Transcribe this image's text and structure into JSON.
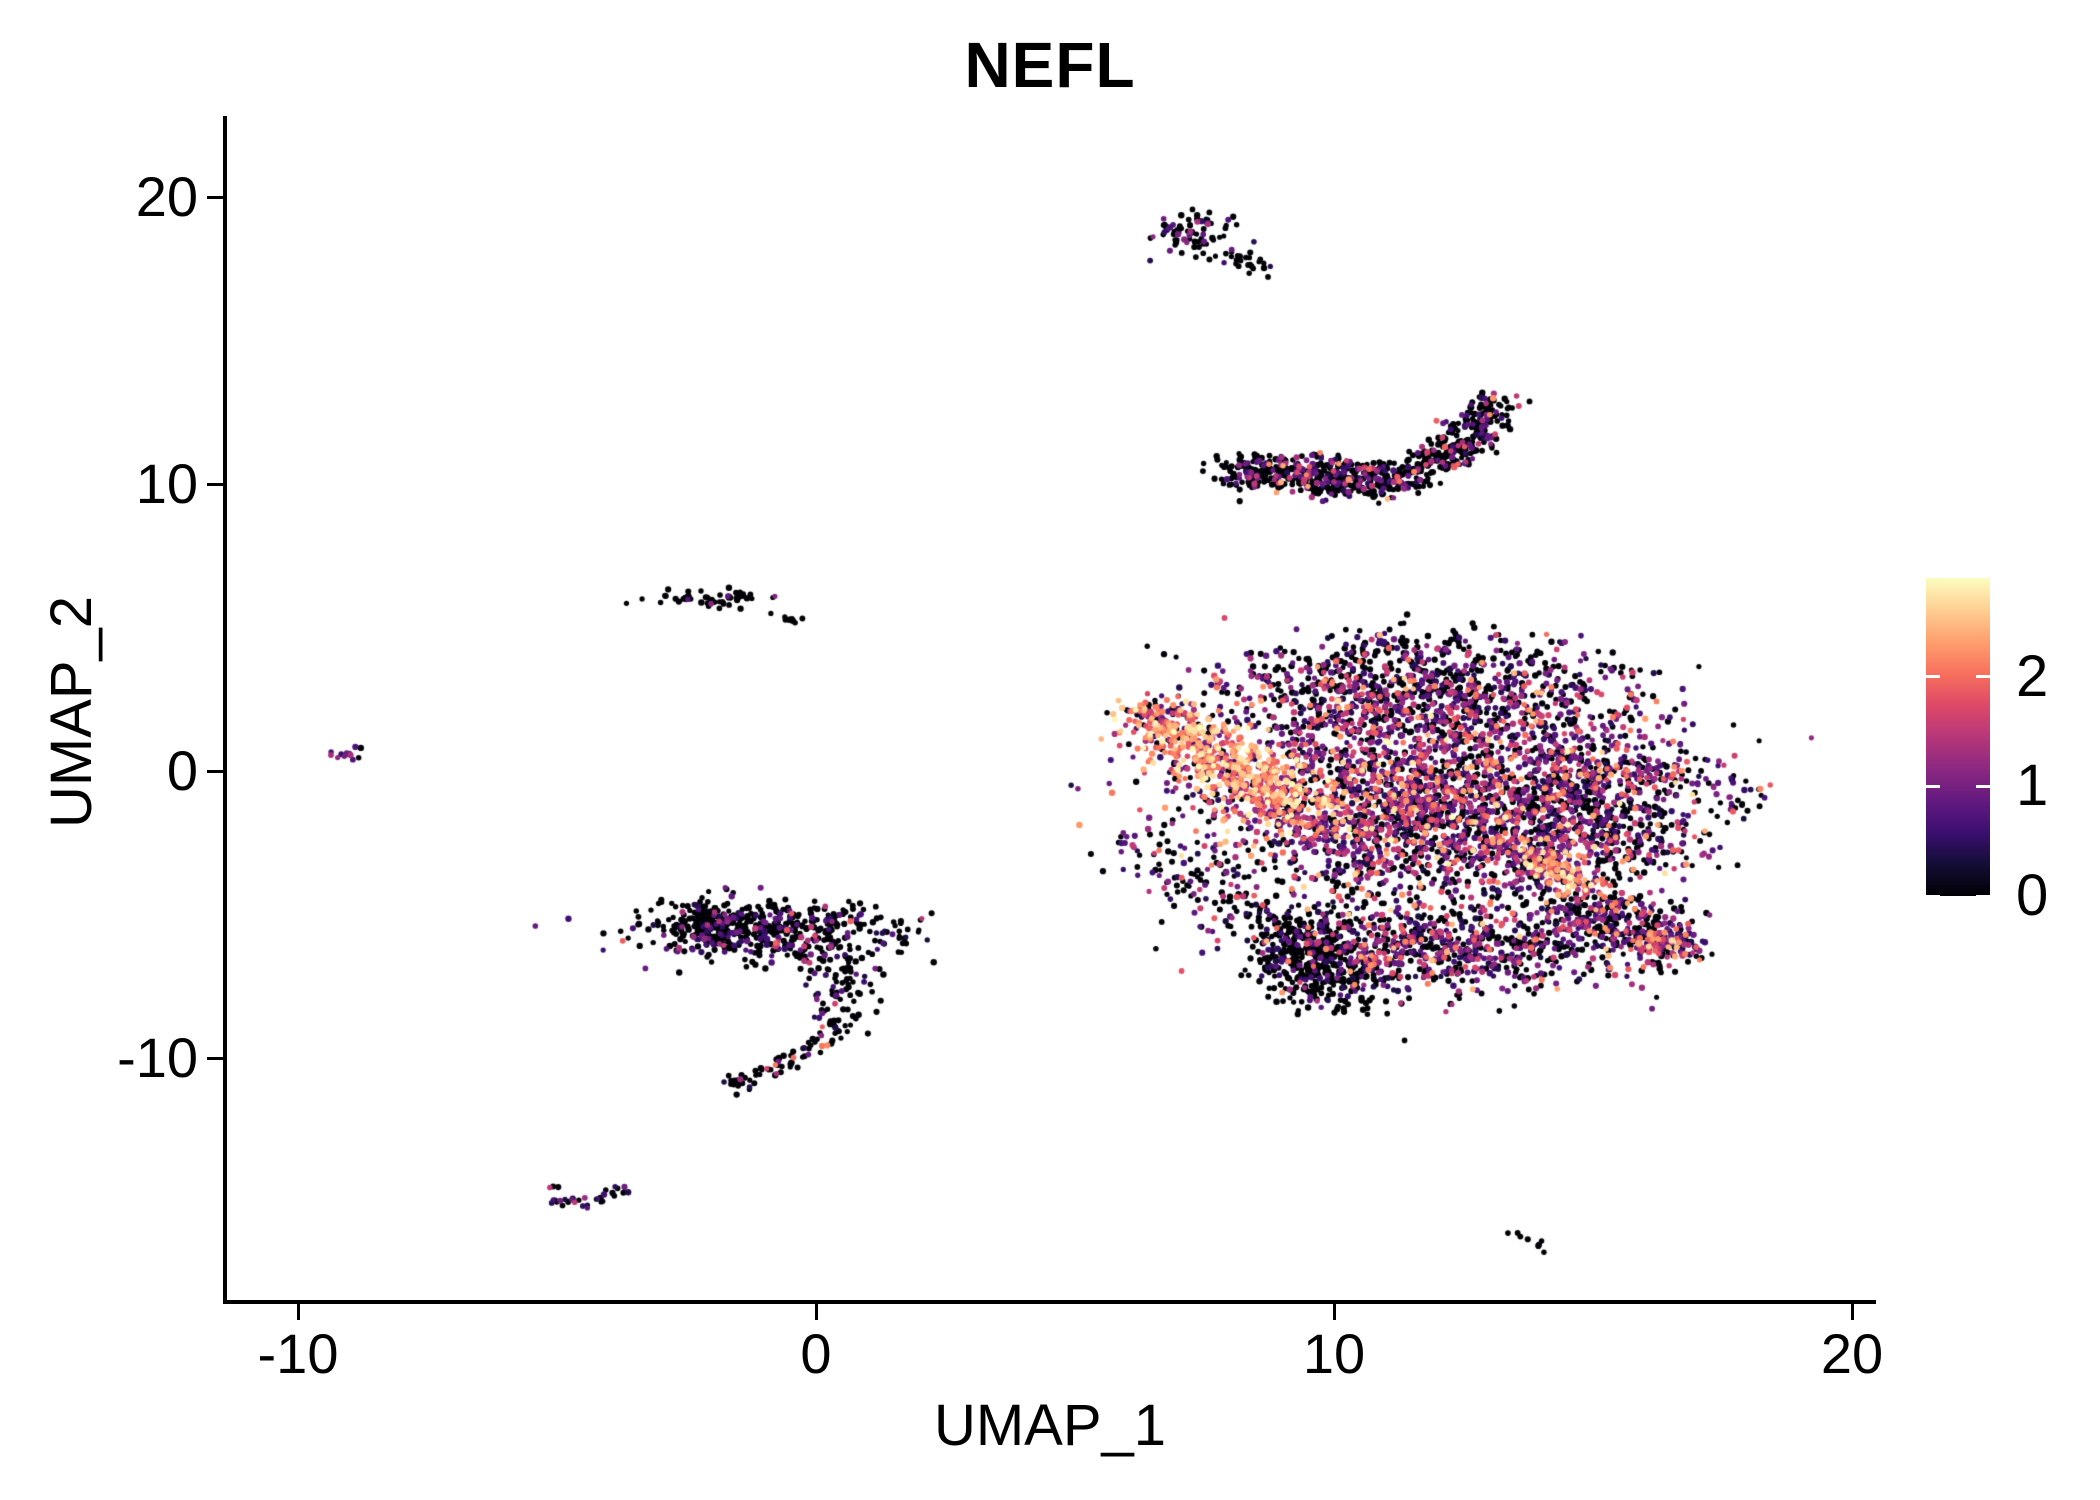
{
  "chart_data": {
    "type": "scatter",
    "title": "NEFL",
    "xlabel": "UMAP_1",
    "ylabel": "UMAP_2",
    "x_ticks": [
      -10,
      0,
      10,
      20
    ],
    "x_tick_labels": [
      "-10",
      "0",
      "10",
      "20"
    ],
    "y_ticks": [
      -10,
      0,
      10,
      20
    ],
    "y_tick_labels": [
      "-10",
      "0",
      "10",
      "20"
    ],
    "x_range": [
      -11.4,
      20.5
    ],
    "y_range": [
      -18.6,
      22.8
    ],
    "grid": false,
    "legend": {
      "position": "right",
      "min": 0,
      "max": 2.9,
      "ticks": [
        0,
        1,
        2
      ],
      "tick_labels": [
        "0",
        "1",
        "2"
      ]
    },
    "colormap": {
      "name": "magma",
      "stops": [
        "#000004",
        "#140e36",
        "#3b0f70",
        "#641a80",
        "#8c2981",
        "#b73779",
        "#de4968",
        "#f7705c",
        "#fe9f6d",
        "#fecf92",
        "#fcfdbf"
      ]
    },
    "clusters": [
      {
        "name": "top-comma-head",
        "shape": "blob",
        "center": [
          7.35,
          18.75
        ],
        "sd": [
          0.45,
          0.35
        ],
        "n": 75,
        "levels": [
          [
            0.8,
            0,
            0.02
          ],
          [
            0.13,
            0.4,
            0.9
          ],
          [
            0.07,
            0.9,
            1.5
          ]
        ]
      },
      {
        "name": "top-comma-tail",
        "shape": "path",
        "path": [
          [
            7.95,
            18.05
          ],
          [
            8.75,
            17.35
          ]
        ],
        "jitter": [
          0.12,
          0.12
        ],
        "n": 26,
        "levels": [
          [
            0.88,
            0,
            0.02
          ],
          [
            0.08,
            0.4,
            0.9
          ],
          [
            0.04,
            0.9,
            1.4
          ]
        ]
      },
      {
        "name": "crescent-band",
        "shape": "path",
        "path": [
          [
            7.95,
            10.5
          ],
          [
            9.2,
            10.4
          ],
          [
            10.7,
            10.1
          ],
          [
            11.7,
            10.35
          ]
        ],
        "jitter": [
          0.25,
          0.33
        ],
        "n": 540,
        "levels": [
          [
            0.7,
            0,
            0.03
          ],
          [
            0.17,
            0.35,
            1.0
          ],
          [
            0.09,
            1.0,
            1.7
          ],
          [
            0.04,
            1.7,
            2.5
          ]
        ]
      },
      {
        "name": "crescent-arm",
        "shape": "path",
        "path": [
          [
            11.8,
            10.6
          ],
          [
            12.45,
            11.3
          ],
          [
            13.0,
            12.5
          ],
          [
            13.15,
            12.95
          ]
        ],
        "jitter": [
          0.3,
          0.25
        ],
        "n": 270,
        "levels": [
          [
            0.74,
            0,
            0.03
          ],
          [
            0.15,
            0.35,
            1.0
          ],
          [
            0.08,
            1.0,
            1.7
          ],
          [
            0.03,
            1.7,
            2.3
          ]
        ]
      },
      {
        "name": "bright-arm",
        "shape": "path",
        "path": [
          [
            6.55,
            1.85
          ],
          [
            7.3,
            1.0
          ],
          [
            8.05,
            0.15
          ],
          [
            8.75,
            -0.7
          ],
          [
            9.35,
            -1.5
          ]
        ],
        "jitter": [
          0.55,
          0.5
        ],
        "n": 640,
        "levels": [
          [
            0.05,
            0,
            0.05
          ],
          [
            0.1,
            0.5,
            1.2
          ],
          [
            0.22,
            1.2,
            1.9
          ],
          [
            0.38,
            1.9,
            2.5
          ],
          [
            0.25,
            2.5,
            2.9
          ]
        ]
      },
      {
        "name": "arm-tip",
        "shape": "blob",
        "center": [
          6.5,
          2.1
        ],
        "sd": [
          0.3,
          0.25
        ],
        "n": 45,
        "levels": [
          [
            0.45,
            0,
            0.05
          ],
          [
            0.3,
            0.4,
            1.1
          ],
          [
            0.15,
            1.1,
            1.8
          ],
          [
            0.1,
            1.8,
            2.4
          ]
        ]
      },
      {
        "name": "top-lobe",
        "shape": "blob",
        "center": [
          11.6,
          2.55
        ],
        "sd": [
          1.85,
          0.95
        ],
        "n": 980,
        "levels": [
          [
            0.44,
            0,
            0.05
          ],
          [
            0.3,
            0.3,
            1.0
          ],
          [
            0.18,
            1.0,
            1.7
          ],
          [
            0.07,
            1.7,
            2.4
          ],
          [
            0.01,
            2.4,
            2.8
          ]
        ]
      },
      {
        "name": "top-fringe",
        "shape": "path",
        "path": [
          [
            8.9,
            3.2
          ],
          [
            10.4,
            4.2
          ],
          [
            12.2,
            4.5
          ],
          [
            13.9,
            3.6
          ]
        ],
        "jitter": [
          0.5,
          0.4
        ],
        "n": 120,
        "levels": [
          [
            0.68,
            0,
            0.03
          ],
          [
            0.24,
            0.3,
            1.0
          ],
          [
            0.08,
            1.0,
            1.6
          ]
        ]
      },
      {
        "name": "center-mass",
        "shape": "blob",
        "center": [
          11.7,
          -1.4
        ],
        "sd": [
          2.05,
          1.65
        ],
        "n": 2200,
        "levels": [
          [
            0.33,
            0,
            0.05
          ],
          [
            0.29,
            0.3,
            1.0
          ],
          [
            0.23,
            1.0,
            1.7
          ],
          [
            0.12,
            1.7,
            2.4
          ],
          [
            0.03,
            2.4,
            2.9
          ]
        ]
      },
      {
        "name": "right-bulge",
        "shape": "blob",
        "center": [
          15.3,
          -1.0
        ],
        "sd": [
          1.15,
          1.55
        ],
        "n": 680,
        "levels": [
          [
            0.46,
            0,
            0.05
          ],
          [
            0.28,
            0.3,
            1.0
          ],
          [
            0.17,
            1.0,
            1.7
          ],
          [
            0.08,
            1.7,
            2.4
          ],
          [
            0.01,
            2.4,
            2.8
          ]
        ]
      },
      {
        "name": "diag-hotspot",
        "shape": "path",
        "path": [
          [
            13.5,
            -2.5
          ],
          [
            14.2,
            -3.3
          ],
          [
            14.9,
            -4.1
          ]
        ],
        "jitter": [
          0.3,
          0.3
        ],
        "n": 140,
        "levels": [
          [
            0.06,
            0,
            0.05
          ],
          [
            0.12,
            0.5,
            1.2
          ],
          [
            0.24,
            1.2,
            1.9
          ],
          [
            0.38,
            1.9,
            2.5
          ],
          [
            0.2,
            2.5,
            2.9
          ]
        ]
      },
      {
        "name": "dark-blob",
        "shape": "blob",
        "center": [
          9.7,
          -6.6
        ],
        "sd": [
          0.6,
          0.9
        ],
        "n": 430,
        "levels": [
          [
            0.88,
            0,
            0.02
          ],
          [
            0.09,
            0.3,
            0.8
          ],
          [
            0.03,
            0.8,
            1.4
          ]
        ]
      },
      {
        "name": "bottom-band",
        "shape": "blob",
        "center": [
          12.35,
          -6.2
        ],
        "sd": [
          1.8,
          0.8
        ],
        "n": 800,
        "levels": [
          [
            0.4,
            0,
            0.04
          ],
          [
            0.31,
            0.3,
            1.0
          ],
          [
            0.2,
            1.0,
            1.7
          ],
          [
            0.08,
            1.7,
            2.3
          ],
          [
            0.01,
            2.3,
            2.7
          ]
        ]
      },
      {
        "name": "right-wing",
        "shape": "path",
        "path": [
          [
            14.55,
            -4.7
          ],
          [
            15.5,
            -5.2
          ],
          [
            16.3,
            -5.75
          ],
          [
            16.75,
            -6.1
          ]
        ],
        "jitter": [
          0.42,
          0.42
        ],
        "n": 300,
        "levels": [
          [
            0.5,
            0,
            0.04
          ],
          [
            0.27,
            0.3,
            1.0
          ],
          [
            0.14,
            1.0,
            1.7
          ],
          [
            0.07,
            1.7,
            2.3
          ],
          [
            0.02,
            2.3,
            2.8
          ]
        ]
      },
      {
        "name": "wing-tip-hot",
        "shape": "blob",
        "center": [
          16.3,
          -5.95
        ],
        "sd": [
          0.3,
          0.27
        ],
        "n": 60,
        "levels": [
          [
            0.1,
            0,
            0.04
          ],
          [
            0.15,
            0.4,
            1.1
          ],
          [
            0.25,
            1.1,
            1.8
          ],
          [
            0.33,
            1.8,
            2.4
          ],
          [
            0.17,
            2.4,
            2.9
          ]
        ]
      },
      {
        "name": "left-trail",
        "shape": "path",
        "path": [
          [
            6.15,
            -2.3
          ],
          [
            7.2,
            -3.7
          ],
          [
            8.3,
            -5.0
          ],
          [
            9.2,
            -6.0
          ]
        ],
        "jitter": [
          0.45,
          0.4
        ],
        "n": 130,
        "levels": [
          [
            0.6,
            0,
            0.03
          ],
          [
            0.27,
            0.3,
            1.0
          ],
          [
            0.11,
            1.0,
            1.6
          ],
          [
            0.02,
            1.6,
            2.1
          ]
        ]
      },
      {
        "name": "left-dot",
        "shape": "blob",
        "center": [
          -9.05,
          0.62
        ],
        "sd": [
          0.22,
          0.16
        ],
        "n": 13,
        "levels": [
          [
            0.3,
            0,
            0.02
          ],
          [
            0.38,
            0.5,
            1.1
          ],
          [
            0.22,
            1.1,
            1.6
          ],
          [
            0.1,
            1.7,
            2.1
          ]
        ]
      },
      {
        "name": "dash-left",
        "shape": "blob",
        "center": [
          -2.05,
          5.95
        ],
        "sd": [
          0.48,
          0.16
        ],
        "n": 55,
        "levels": [
          [
            0.9,
            0,
            0.02
          ],
          [
            0.07,
            0.4,
            1.0
          ],
          [
            0.03,
            1.0,
            1.4
          ]
        ]
      },
      {
        "name": "dash-satellite",
        "shape": "path",
        "path": [
          [
            -0.85,
            5.45
          ],
          [
            -0.35,
            5.2
          ]
        ],
        "jitter": [
          0.07,
          0.05
        ],
        "n": 9,
        "levels": [
          [
            1.0,
            0,
            0.02
          ]
        ]
      },
      {
        "name": "hook-main",
        "shape": "blob",
        "center": [
          -0.7,
          -5.6
        ],
        "sd": [
          1.3,
          0.55
        ],
        "n": 430,
        "levels": [
          [
            0.7,
            0,
            0.03
          ],
          [
            0.2,
            0.3,
            0.9
          ],
          [
            0.08,
            0.9,
            1.6
          ],
          [
            0.02,
            1.6,
            2.2
          ]
        ]
      },
      {
        "name": "hook-left-dense",
        "shape": "blob",
        "center": [
          -1.95,
          -5.35
        ],
        "sd": [
          0.5,
          0.45
        ],
        "n": 160,
        "levels": [
          [
            0.82,
            0,
            0.02
          ],
          [
            0.14,
            0.3,
            0.9
          ],
          [
            0.04,
            0.9,
            1.5
          ]
        ]
      },
      {
        "name": "hook-mid",
        "shape": "path",
        "path": [
          [
            0.35,
            -6.7
          ],
          [
            0.55,
            -7.6
          ],
          [
            0.35,
            -8.5
          ]
        ],
        "jitter": [
          0.33,
          0.3
        ],
        "n": 85,
        "levels": [
          [
            0.72,
            0,
            0.03
          ],
          [
            0.18,
            0.3,
            0.9
          ],
          [
            0.07,
            0.9,
            1.6
          ],
          [
            0.03,
            1.6,
            2.2
          ]
        ]
      },
      {
        "name": "hook-tail",
        "shape": "path",
        "path": [
          [
            0.45,
            -8.8
          ],
          [
            -0.25,
            -9.9
          ],
          [
            -1.2,
            -10.7
          ],
          [
            -1.75,
            -11.1
          ]
        ],
        "jitter": [
          0.17,
          0.15
        ],
        "n": 75,
        "levels": [
          [
            0.78,
            0,
            0.03
          ],
          [
            0.14,
            0.3,
            0.9
          ],
          [
            0.05,
            0.9,
            1.6
          ],
          [
            0.03,
            1.6,
            2.2
          ]
        ]
      },
      {
        "name": "bottom-left-bird",
        "shape": "path",
        "path": [
          [
            -5.25,
            -14.5
          ],
          [
            -4.65,
            -15.15
          ],
          [
            -4.35,
            -15.1
          ],
          [
            -3.8,
            -14.55
          ]
        ],
        "jitter": [
          0.16,
          0.12
        ],
        "n": 34,
        "levels": [
          [
            0.5,
            0,
            0.03
          ],
          [
            0.32,
            0.3,
            1.0
          ],
          [
            0.18,
            1.0,
            1.6
          ]
        ]
      },
      {
        "name": "right-seven",
        "shape": "blob",
        "center": [
          17.82,
          -0.6
        ],
        "sd": [
          0.3,
          0.22
        ],
        "n": 13,
        "levels": [
          [
            0.55,
            0,
            0.03
          ],
          [
            0.25,
            0.4,
            1.0
          ],
          [
            0.12,
            1.0,
            1.6
          ],
          [
            0.08,
            1.6,
            2.1
          ]
        ]
      },
      {
        "name": "right-seven-tail",
        "shape": "path",
        "path": [
          [
            17.85,
            -0.95
          ],
          [
            17.7,
            -1.45
          ]
        ],
        "jitter": [
          0.07,
          0.08
        ],
        "n": 6,
        "levels": [
          [
            0.7,
            0,
            0.02
          ],
          [
            0.3,
            0.4,
            1.0
          ]
        ]
      },
      {
        "name": "bottom-right-dash",
        "shape": "path",
        "path": [
          [
            13.5,
            -16.1
          ],
          [
            14.05,
            -16.65
          ]
        ],
        "jitter": [
          0.1,
          0.07
        ],
        "n": 9,
        "levels": [
          [
            0.85,
            0,
            0.02
          ],
          [
            0.15,
            0.8,
            1.4
          ]
        ]
      }
    ]
  }
}
